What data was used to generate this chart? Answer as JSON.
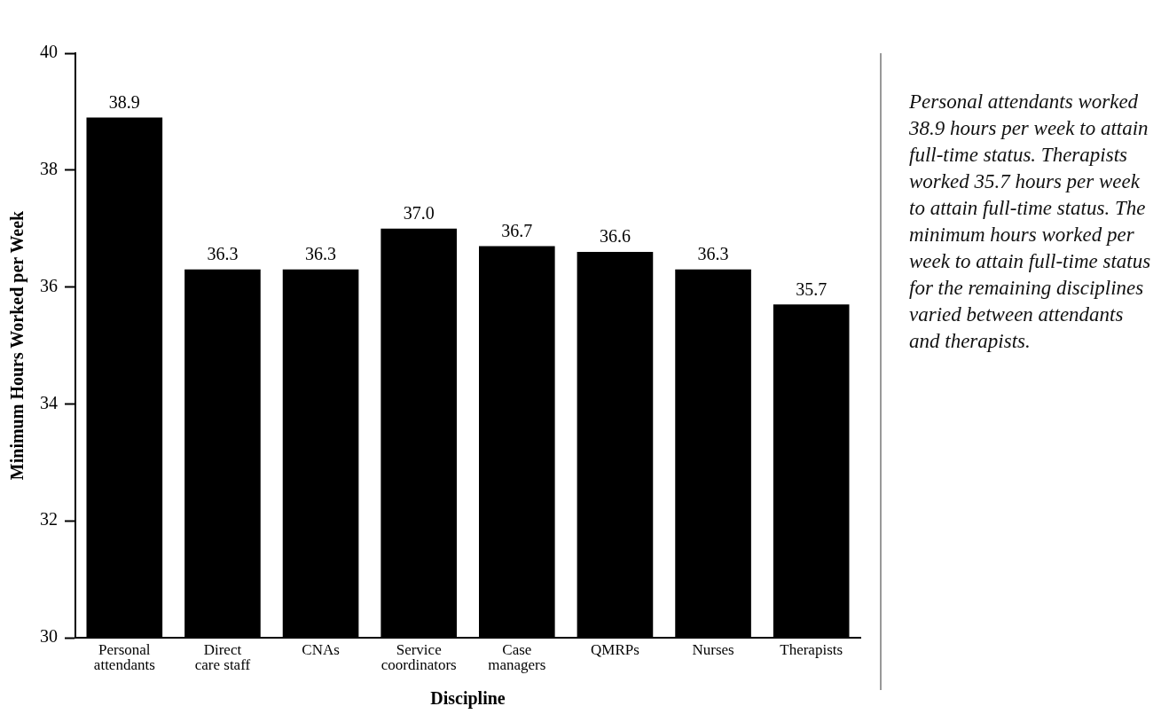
{
  "chart_data": {
    "type": "bar",
    "categories": [
      "Personal attendants",
      "Direct care staff",
      "CNAs",
      "Service coordinators",
      "Case managers",
      "QMRPs",
      "Nurses",
      "Therapists"
    ],
    "values": [
      38.9,
      36.3,
      36.3,
      37.0,
      36.7,
      36.6,
      36.3,
      35.7
    ],
    "value_labels": [
      "38.9",
      "36.3",
      "36.3",
      "37.0",
      "36.7",
      "36.6",
      "36.3",
      "35.7"
    ],
    "color": "#000000",
    "xlabel": "Discipline",
    "ylabel": "Minimum Hours Worked per Week",
    "ylim": [
      30,
      40
    ],
    "yticks": [
      30,
      32,
      34,
      36,
      38,
      40
    ],
    "grid": false,
    "legend": false,
    "annotations": [
      "Personal attendants worked 38.9 hours per week to attain full-time status. Therapists worked 35.7 hours per week to attain full-time status. The minimum hours worked per week to attain full-time status for the remaining disciplines varied between attendants and therapists."
    ]
  }
}
